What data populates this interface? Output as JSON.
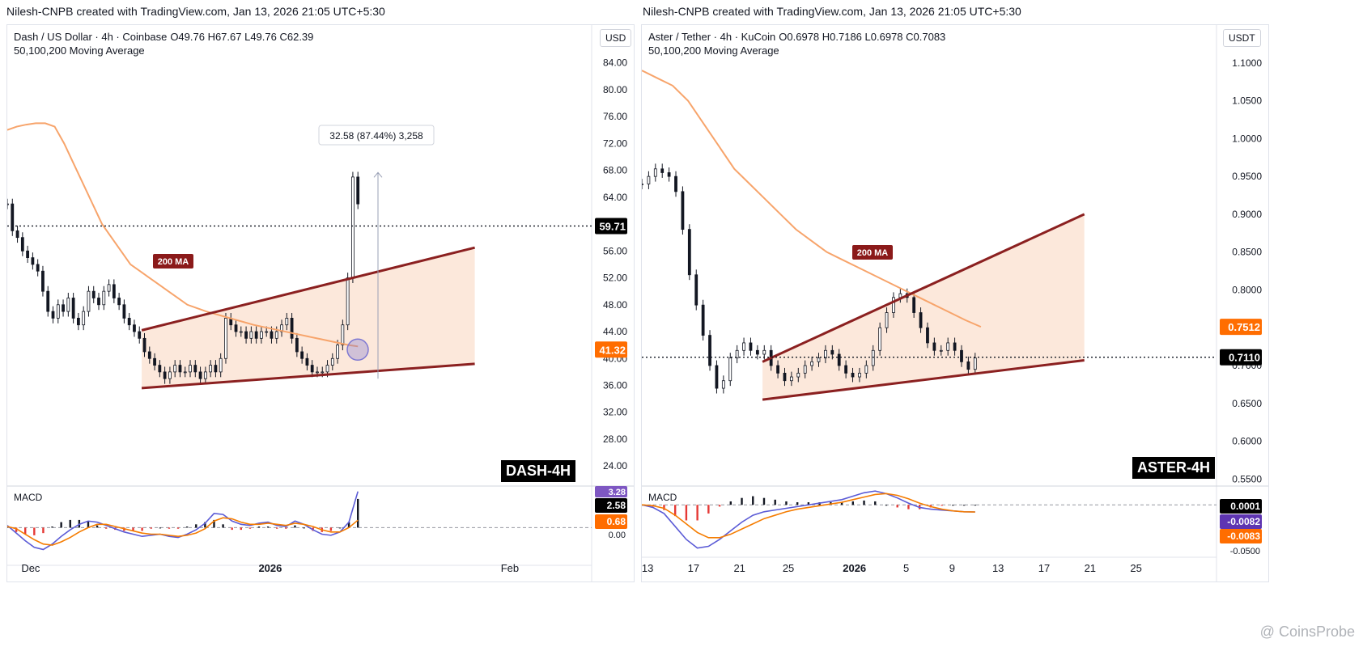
{
  "charts": [
    {
      "creator": "Nilesh-CNPB created with TradingView.com, Jan 13, 2026 21:05 UTC+5:30",
      "symbol": "Dash / US Dollar · 4h · Coinbase",
      "ohlc": "O49.76  H67.67  L49.76  C62.39",
      "indicator": "50,100,200 Moving Average",
      "currency": "USD",
      "ma_label": "200 MA",
      "measure_label": "32.58 (87.44%) 3,258",
      "tag": "DASH-4H",
      "macd_label": "MACD",
      "price_labels": {
        "last": "59.71",
        "ma": "41.32"
      },
      "macd_labels": {
        "top": "3.28",
        "a": "2.58",
        "b": "0.68",
        "zero": "0.00"
      },
      "colors": {
        "ma": "#f7a46b",
        "trend": "#8b2020",
        "fill": "#fbdcc8",
        "circle": "#7e78d2",
        "macd": "#5b5bd6",
        "signal": "#f57c00"
      },
      "chart_data": {
        "type": "line",
        "yticks": [
          84.0,
          80.0,
          76.0,
          72.0,
          68.0,
          64.0,
          56.0,
          52.0,
          48.0,
          44.0,
          40.0,
          36.0,
          32.0,
          28.0,
          24.0
        ],
        "ylim": [
          21.5,
          86
        ],
        "xticks": [
          {
            "label": "Dec",
            "pos": 0.04
          },
          {
            "label": "2026",
            "pos": 0.45
          },
          {
            "label": "Feb",
            "pos": 0.86
          }
        ],
        "price": [
          63,
          59,
          58,
          56,
          55,
          54,
          53,
          50,
          47,
          46,
          48,
          47,
          49,
          46,
          45,
          47,
          50,
          49,
          48,
          50,
          51,
          49,
          48,
          46,
          45,
          44,
          43,
          41,
          40,
          39,
          38,
          37,
          38,
          39,
          38,
          38,
          39,
          38,
          37,
          38,
          39,
          38,
          40,
          46,
          45,
          44,
          44,
          43,
          44,
          43,
          44,
          44,
          43,
          44,
          45,
          46,
          43,
          41,
          40,
          39,
          38,
          38,
          38,
          39,
          40,
          42,
          45,
          52,
          67,
          63
        ],
        "ma200": [
          74,
          74.5,
          74.8,
          75,
          75,
          74.5,
          72,
          69,
          66,
          63,
          60,
          58,
          56,
          54,
          53,
          52,
          51,
          50,
          49,
          48,
          47.5,
          47,
          46.6,
          46.2,
          45.8,
          45.4,
          45,
          44.7,
          44.4,
          44.1,
          43.8,
          43.5,
          43.2,
          42.9,
          42.6,
          42.3,
          42,
          41.8
        ],
        "trend_upper": [
          [
            0.23,
            44.2
          ],
          [
            0.8,
            56.5
          ]
        ],
        "trend_lower": [
          [
            0.23,
            35.6
          ],
          [
            0.8,
            39.2
          ]
        ],
        "hline": 59.71,
        "ma_last": 41.32,
        "macd_ylim": [
          -3.0,
          3.5
        ],
        "macd": [
          0.2,
          -0.5,
          -1.2,
          -1.8,
          -2.0,
          -1.5,
          -0.8,
          -0.2,
          0.3,
          0.6,
          0.5,
          0.2,
          -0.1,
          -0.4,
          -0.6,
          -0.8,
          -0.7,
          -0.6,
          -0.8,
          -0.9,
          -0.6,
          -0.2,
          0.4,
          1.3,
          1.2,
          0.6,
          0.3,
          0.2,
          0.4,
          0.5,
          0.2,
          0.1,
          0.6,
          0.3,
          -0.2,
          -0.6,
          -0.7,
          -0.4,
          0.5,
          3.3
        ],
        "signal": [
          0.1,
          -0.1,
          -0.6,
          -1.1,
          -1.5,
          -1.6,
          -1.3,
          -0.9,
          -0.4,
          0.0,
          0.3,
          0.3,
          0.1,
          -0.1,
          -0.3,
          -0.5,
          -0.6,
          -0.6,
          -0.7,
          -0.8,
          -0.7,
          -0.5,
          -0.1,
          0.6,
          0.9,
          0.8,
          0.5,
          0.3,
          0.3,
          0.4,
          0.3,
          0.2,
          0.4,
          0.3,
          0.1,
          -0.2,
          -0.4,
          -0.4,
          0.0,
          0.68
        ]
      }
    },
    {
      "creator": "Nilesh-CNPB created with TradingView.com, Jan 13, 2026 21:05 UTC+5:30",
      "symbol": "Aster / Tether · 4h · KuCoin",
      "ohlc": "O0.6978  H0.7186  L0.6978  C0.7083",
      "indicator": "50,100,200 Moving Average",
      "currency": "USDT",
      "ma_label": "200 MA",
      "tag": "ASTER-4H",
      "macd_label": "MACD",
      "price_labels": {
        "last": "0.7110",
        "ma": "0.7512"
      },
      "macd_labels": {
        "a": "0.0001",
        "b": "-0.0082",
        "c": "-0.0083",
        "bottom": "-0.0500"
      },
      "colors": {
        "ma": "#f7a46b",
        "trend": "#8b2020",
        "fill": "#fbdcc8",
        "macd": "#5b5bd6",
        "signal": "#f57c00"
      },
      "chart_data": {
        "type": "line",
        "yticks": [
          1.1,
          1.05,
          1.0,
          0.95,
          0.9,
          0.85,
          0.8,
          0.75,
          0.7,
          0.65,
          0.6,
          0.55
        ],
        "ylim": [
          0.545,
          1.118
        ],
        "xticks": [
          {
            "label": "13",
            "pos": 0.01
          },
          {
            "label": "17",
            "pos": 0.09
          },
          {
            "label": "21",
            "pos": 0.17
          },
          {
            "label": "25",
            "pos": 0.255
          },
          {
            "label": "2026",
            "pos": 0.37
          },
          {
            "label": "5",
            "pos": 0.46
          },
          {
            "label": "9",
            "pos": 0.54
          },
          {
            "label": "13",
            "pos": 0.62
          },
          {
            "label": "17",
            "pos": 0.7
          },
          {
            "label": "21",
            "pos": 0.78
          },
          {
            "label": "25",
            "pos": 0.86
          }
        ],
        "price": [
          0.94,
          0.95,
          0.96,
          0.955,
          0.95,
          0.93,
          0.88,
          0.82,
          0.78,
          0.74,
          0.7,
          0.67,
          0.68,
          0.71,
          0.72,
          0.73,
          0.72,
          0.715,
          0.72,
          0.7,
          0.69,
          0.68,
          0.685,
          0.69,
          0.7,
          0.705,
          0.71,
          0.72,
          0.715,
          0.7,
          0.69,
          0.685,
          0.69,
          0.7,
          0.72,
          0.75,
          0.77,
          0.79,
          0.795,
          0.79,
          0.77,
          0.75,
          0.73,
          0.72,
          0.72,
          0.73,
          0.72,
          0.705,
          0.695,
          0.71
        ],
        "ma200": [
          1.09,
          1.08,
          1.07,
          1.05,
          1.02,
          0.99,
          0.96,
          0.94,
          0.92,
          0.9,
          0.88,
          0.865,
          0.85,
          0.84,
          0.83,
          0.82,
          0.81,
          0.8,
          0.79,
          0.78,
          0.77,
          0.76,
          0.7512
        ],
        "trend_upper": [
          [
            0.21,
            0.705
          ],
          [
            0.77,
            0.9
          ]
        ],
        "trend_lower": [
          [
            0.21,
            0.655
          ],
          [
            0.77,
            0.707
          ]
        ],
        "hline": 0.711,
        "ma_last": 0.7512,
        "macd_ylim": [
          -0.055,
          0.018
        ],
        "macd": [
          0.0,
          -0.003,
          -0.01,
          -0.025,
          -0.04,
          -0.05,
          -0.048,
          -0.04,
          -0.03,
          -0.02,
          -0.012,
          -0.008,
          -0.006,
          -0.004,
          -0.002,
          0.0,
          0.002,
          0.004,
          0.006,
          0.01,
          0.014,
          0.016,
          0.013,
          0.008,
          0.002,
          -0.003,
          -0.005,
          -0.006,
          -0.007,
          -0.008,
          -0.0082
        ],
        "signal": [
          0.0,
          -0.001,
          -0.004,
          -0.012,
          -0.022,
          -0.032,
          -0.038,
          -0.038,
          -0.034,
          -0.028,
          -0.022,
          -0.016,
          -0.012,
          -0.008,
          -0.005,
          -0.003,
          -0.001,
          0.001,
          0.003,
          0.006,
          0.009,
          0.012,
          0.013,
          0.011,
          0.007,
          0.002,
          -0.002,
          -0.005,
          -0.007,
          -0.008,
          -0.0083
        ]
      }
    }
  ],
  "watermark": "@ CoinsProbe"
}
